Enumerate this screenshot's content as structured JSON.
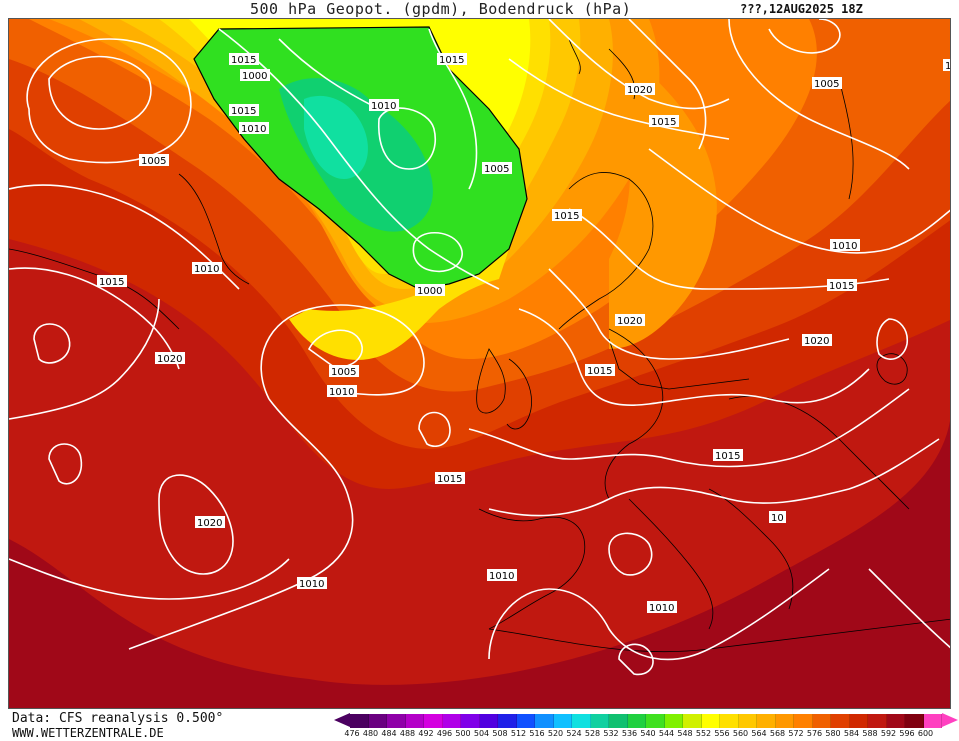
{
  "header": {
    "title": "500 hPa Geopot. (gpdm), Bodendruck (hPa)",
    "date": "???,12AUG2025 18Z"
  },
  "footer": {
    "source": "Data: CFS reanalysis 0.500°",
    "site": "WWW.WETTERZENTRALE.DE"
  },
  "legend": {
    "values": [
      476,
      480,
      484,
      488,
      492,
      496,
      500,
      504,
      508,
      512,
      516,
      520,
      524,
      528,
      532,
      536,
      540,
      544,
      548,
      552,
      556,
      560,
      564,
      568,
      572,
      576,
      580,
      584,
      588,
      592,
      596,
      600
    ],
    "colors": [
      "#4b0060",
      "#6a0080",
      "#8f00a8",
      "#b400c8",
      "#d400e0",
      "#b000e8",
      "#8000e8",
      "#5000e0",
      "#2020e8",
      "#1050ff",
      "#1090ff",
      "#10c0ff",
      "#10e0e0",
      "#10d0a0",
      "#10c070",
      "#20d040",
      "#40e020",
      "#80f000",
      "#d0f000",
      "#ffff00",
      "#ffe000",
      "#ffc800",
      "#ffb000",
      "#ff9800",
      "#ff8000",
      "#f06000",
      "#e04000",
      "#d02800",
      "#c01810",
      "#a00818",
      "#800010",
      "#ff40c0"
    ]
  },
  "map": {
    "isobar_labels": [
      {
        "text": "1015"
      },
      {
        "text": "1015"
      },
      {
        "text": "1010"
      },
      {
        "text": "1000"
      },
      {
        "text": "1005"
      },
      {
        "text": "1010"
      },
      {
        "text": "1005"
      },
      {
        "text": "1015"
      },
      {
        "text": "1000"
      },
      {
        "text": "1010"
      },
      {
        "text": "1020"
      },
      {
        "text": "1015"
      },
      {
        "text": "1005"
      },
      {
        "text": "1010"
      },
      {
        "text": "1015"
      },
      {
        "text": "1005"
      },
      {
        "text": "1020"
      },
      {
        "text": "1015"
      },
      {
        "text": "1010"
      },
      {
        "text": "1015"
      },
      {
        "text": "1020"
      },
      {
        "text": "1015"
      },
      {
        "text": "1020"
      },
      {
        "text": "1015"
      },
      {
        "text": "1020"
      },
      {
        "text": "1010"
      },
      {
        "text": "1015"
      },
      {
        "text": "1010"
      },
      {
        "text": "1010"
      },
      {
        "text": "10"
      },
      {
        "text": "1"
      }
    ]
  }
}
